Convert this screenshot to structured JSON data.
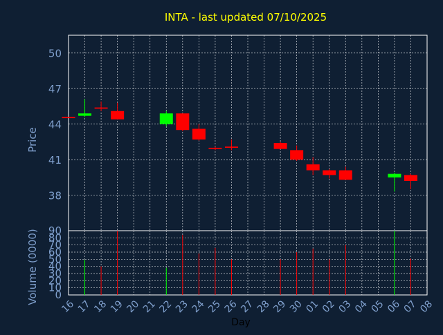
{
  "title": "INTA - last updated 07/10/2025",
  "colors": {
    "background": "#0f1f33",
    "axis": "#ffffff",
    "grid": "#ffffff",
    "title": "#ffff00",
    "tick_label": "#7f9fcc",
    "axis_label": "#7f9fcc",
    "up": "#00ff00",
    "down": "#ff0000"
  },
  "chart_data": [
    {
      "type": "candlestick",
      "ylabel": "Price",
      "ylim": [
        35,
        51.5
      ],
      "yticks": [
        38,
        41,
        44,
        47,
        50
      ],
      "grid": true,
      "x_categories": [
        "16",
        "17",
        "18",
        "19",
        "20",
        "21",
        "22",
        "23",
        "24",
        "25",
        "26",
        "27",
        "28",
        "29",
        "30",
        "01",
        "02",
        "03",
        "04",
        "05",
        "06",
        "07",
        "08"
      ],
      "candles": [
        {
          "x": "16",
          "open": 44.6,
          "high": 44.6,
          "low": 44.5,
          "close": 44.5,
          "dir": "down"
        },
        {
          "x": "17",
          "open": 44.7,
          "high": 46.1,
          "low": 44.6,
          "close": 44.9,
          "dir": "up"
        },
        {
          "x": "18",
          "open": 45.4,
          "high": 45.9,
          "low": 45.1,
          "close": 45.3,
          "dir": "down"
        },
        {
          "x": "19",
          "open": 45.1,
          "high": 45.8,
          "low": 44.4,
          "close": 44.4,
          "dir": "down"
        },
        {
          "x": "22",
          "open": 44.0,
          "high": 45.1,
          "low": 43.8,
          "close": 44.9,
          "dir": "up"
        },
        {
          "x": "23",
          "open": 44.9,
          "high": 44.9,
          "low": 43.4,
          "close": 43.5,
          "dir": "down"
        },
        {
          "x": "24",
          "open": 43.6,
          "high": 44.0,
          "low": 42.6,
          "close": 42.7,
          "dir": "down"
        },
        {
          "x": "25",
          "open": 42.0,
          "high": 42.1,
          "low": 41.8,
          "close": 41.9,
          "dir": "down"
        },
        {
          "x": "26",
          "open": 42.1,
          "high": 42.7,
          "low": 41.8,
          "close": 42.0,
          "dir": "down"
        },
        {
          "x": "29",
          "open": 42.4,
          "high": 42.5,
          "low": 41.9,
          "close": 41.9,
          "dir": "down"
        },
        {
          "x": "30",
          "open": 41.8,
          "high": 42.2,
          "low": 40.9,
          "close": 41.0,
          "dir": "down"
        },
        {
          "x": "01",
          "open": 40.6,
          "high": 41.2,
          "low": 39.7,
          "close": 40.1,
          "dir": "down"
        },
        {
          "x": "02",
          "open": 40.1,
          "high": 40.2,
          "low": 39.4,
          "close": 39.7,
          "dir": "down"
        },
        {
          "x": "03",
          "open": 40.1,
          "high": 40.4,
          "low": 39.3,
          "close": 39.3,
          "dir": "down"
        },
        {
          "x": "06",
          "open": 39.5,
          "high": 39.9,
          "low": 38.3,
          "close": 39.8,
          "dir": "up"
        },
        {
          "x": "07",
          "open": 39.7,
          "high": 39.8,
          "low": 38.5,
          "close": 39.2,
          "dir": "down"
        }
      ]
    },
    {
      "type": "bar",
      "ylabel": "Volume (0000)",
      "xlabel": "Day",
      "ylim": [
        0,
        90
      ],
      "yticks": [
        0,
        10,
        20,
        30,
        40,
        50,
        60,
        70,
        80,
        90
      ],
      "grid": true,
      "categories": [
        "16",
        "17",
        "18",
        "19",
        "22",
        "23",
        "24",
        "25",
        "26",
        "29",
        "30",
        "01",
        "02",
        "03",
        "06",
        "07"
      ],
      "values": [
        0,
        49,
        40,
        90,
        38,
        84,
        58,
        66,
        50,
        50,
        60,
        65,
        50,
        70,
        92,
        51
      ],
      "dirs": [
        "down",
        "up",
        "down",
        "down",
        "up",
        "down",
        "down",
        "down",
        "down",
        "down",
        "down",
        "down",
        "down",
        "down",
        "up",
        "down"
      ]
    }
  ]
}
